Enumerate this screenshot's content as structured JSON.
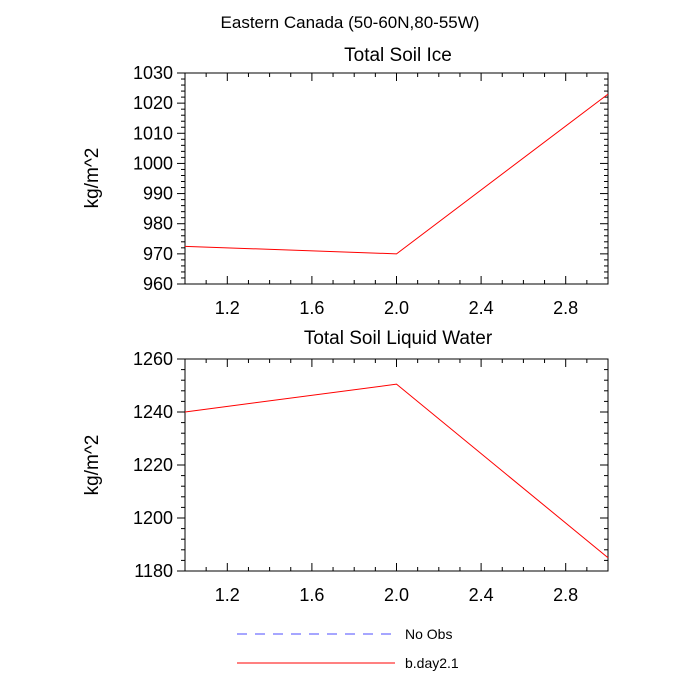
{
  "figure_title": "Eastern Canada (50-60N,80-55W)",
  "colors": {
    "series_line": "#ff0000",
    "no_obs_line": "#4d4dff",
    "axis": "#000000"
  },
  "chart_data": [
    {
      "type": "line",
      "title": "Total Soil Ice",
      "xlabel": "",
      "ylabel": "kg/m^2",
      "xlim": [
        1.0,
        3.0
      ],
      "ylim": [
        960,
        1030
      ],
      "x_ticks": [
        1.2,
        1.6,
        2.0,
        2.4,
        2.8
      ],
      "x_tick_labels": [
        "1.2",
        "1.6",
        "2.0",
        "2.4",
        "2.8"
      ],
      "y_ticks": [
        960,
        970,
        980,
        990,
        1000,
        1010,
        1020,
        1030
      ],
      "y_tick_labels": [
        "960",
        "970",
        "980",
        "990",
        "1000",
        "1010",
        "1020",
        "1030"
      ],
      "series": [
        {
          "name": "b.day2.1",
          "x": [
            1.0,
            2.0,
            3.0
          ],
          "values": [
            972.5,
            970.0,
            1023.0
          ]
        }
      ]
    },
    {
      "type": "line",
      "title": "Total Soil Liquid Water",
      "xlabel": "",
      "ylabel": "kg/m^2",
      "xlim": [
        1.0,
        3.0
      ],
      "ylim": [
        1180,
        1260
      ],
      "x_ticks": [
        1.2,
        1.6,
        2.0,
        2.4,
        2.8
      ],
      "x_tick_labels": [
        "1.2",
        "1.6",
        "2.0",
        "2.4",
        "2.8"
      ],
      "y_ticks": [
        1180,
        1200,
        1220,
        1240,
        1260
      ],
      "y_tick_labels": [
        "1180",
        "1200",
        "1220",
        "1240",
        "1260"
      ],
      "series": [
        {
          "name": "b.day2.1",
          "x": [
            1.0,
            2.0,
            3.0
          ],
          "values": [
            1240.0,
            1250.5,
            1185.0
          ]
        }
      ]
    }
  ],
  "legend": {
    "placement": "bottom-center",
    "entries": [
      {
        "label": "No Obs",
        "style": "dashed"
      },
      {
        "label": "b.day2.1",
        "style": "solid"
      }
    ]
  }
}
